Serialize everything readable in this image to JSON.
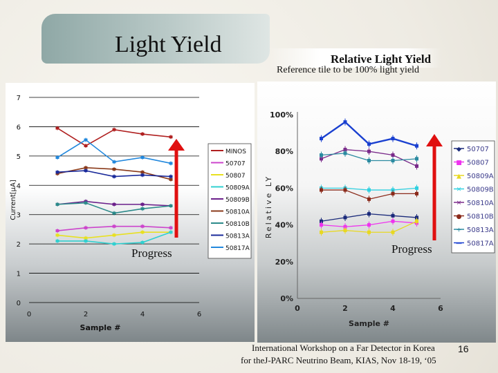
{
  "slide": {
    "title": "Light Yield",
    "subtitle": "Relative Light Yield",
    "reference_note": "Reference tile to be 100% light yield",
    "footer_line1": "International Workshop on a Far Detector in Korea",
    "footer_line2": "for theJ-PARC Neutrino Beam,   KIAS,   Nov 18-19, ‘05",
    "page_number": "16"
  },
  "chart_data": [
    {
      "type": "line",
      "title": "",
      "xlabel": "Sample #",
      "ylabel": "Current[μA]",
      "xlim": [
        0,
        6
      ],
      "ylim": [
        0,
        7
      ],
      "x_ticks": [
        "0",
        "2",
        "4",
        "6"
      ],
      "y_ticks": [
        "0",
        "1",
        "2",
        "3",
        "4",
        "5",
        "6",
        "7"
      ],
      "grid": "horizontal",
      "legend_position": "right",
      "x": [
        1,
        2,
        3,
        4,
        5
      ],
      "series": [
        {
          "name": "MINOS",
          "color": "#b02020",
          "values": [
            5.95,
            5.35,
            5.9,
            5.75,
            5.65
          ]
        },
        {
          "name": "50707",
          "color": "#cc44cc",
          "values": [
            2.45,
            2.55,
            2.6,
            2.6,
            2.55
          ]
        },
        {
          "name": "50807",
          "color": "#e8e020",
          "values": [
            2.3,
            2.2,
            2.3,
            2.4,
            2.4
          ]
        },
        {
          "name": "50809A",
          "color": "#30d0d0",
          "values": [
            2.1,
            2.1,
            2.0,
            2.05,
            2.4
          ]
        },
        {
          "name": "50809B",
          "color": "#6a1f8a",
          "values": [
            3.35,
            3.45,
            3.35,
            3.35,
            3.3
          ]
        },
        {
          "name": "50810A",
          "color": "#8a3a1a",
          "values": [
            4.4,
            4.6,
            4.55,
            4.45,
            4.2
          ]
        },
        {
          "name": "50810B",
          "color": "#2a8a8a",
          "values": [
            3.35,
            3.4,
            3.05,
            3.2,
            3.3
          ]
        },
        {
          "name": "50813A",
          "color": "#1a2a9a",
          "values": [
            4.45,
            4.5,
            4.3,
            4.35,
            4.3
          ]
        },
        {
          "name": "50817A",
          "color": "#2288dd",
          "values": [
            4.95,
            5.55,
            4.8,
            4.95,
            4.75
          ]
        }
      ],
      "annotation": "Progress"
    },
    {
      "type": "line",
      "title": "",
      "xlabel": "Sample #",
      "ylabel": "Relative LY",
      "xlim": [
        0,
        6
      ],
      "ylim": [
        0,
        100
      ],
      "x_ticks": [
        "0",
        "2",
        "4",
        "6"
      ],
      "y_ticks": [
        "0%",
        "20%",
        "40%",
        "60%",
        "80%",
        "100%"
      ],
      "grid": "none",
      "legend_position": "right",
      "x": [
        1,
        2,
        3,
        4,
        5
      ],
      "series": [
        {
          "name": "50707",
          "color": "#1a2a7a",
          "marker": "◆",
          "values": [
            42,
            44,
            46,
            45,
            44
          ]
        },
        {
          "name": "50807",
          "color": "#ee33ee",
          "marker": "■",
          "values": [
            40,
            39,
            40,
            42,
            41
          ]
        },
        {
          "name": "50809A",
          "color": "#e8d820",
          "marker": "▲",
          "values": [
            36,
            37,
            36,
            36,
            42
          ]
        },
        {
          "name": "50809B",
          "color": "#30d0e0",
          "marker": "✕",
          "values": [
            60,
            60,
            59,
            59,
            60
          ]
        },
        {
          "name": "50810A",
          "color": "#7a2a8a",
          "marker": "✕",
          "values": [
            76,
            81,
            80,
            78,
            72
          ]
        },
        {
          "name": "50810B",
          "color": "#8a2a1a",
          "marker": "●",
          "values": [
            59,
            59,
            54,
            57,
            57
          ]
        },
        {
          "name": "50813A",
          "color": "#2a8aa0",
          "marker": "+",
          "values": [
            78,
            79,
            75,
            75,
            76
          ]
        },
        {
          "name": "50817A",
          "color": "#1a40d0",
          "marker": "—",
          "values": [
            87,
            96,
            84,
            87,
            83
          ]
        }
      ],
      "annotation": "Progress"
    }
  ]
}
